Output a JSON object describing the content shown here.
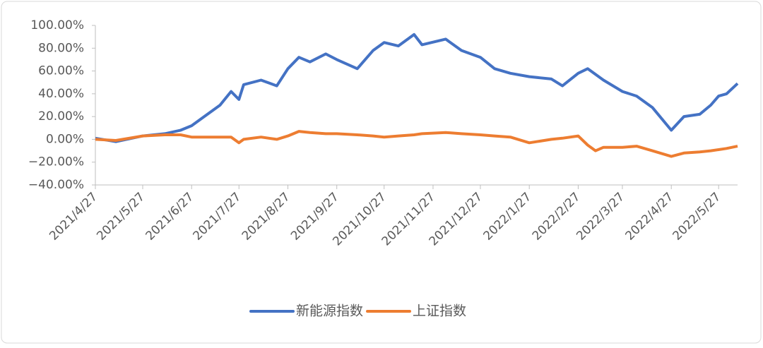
{
  "chart_data": {
    "type": "line",
    "x": [
      "2021/4/27",
      "2021/5/10",
      "2021/5/27",
      "2021/6/10",
      "2021/6/20",
      "2021/6/27",
      "2021/7/5",
      "2021/7/15",
      "2021/7/22",
      "2021/7/27",
      "2021/7/30",
      "2021/8/10",
      "2021/8/20",
      "2021/8/27",
      "2021/9/3",
      "2021/9/10",
      "2021/9/20",
      "2021/9/27",
      "2021/10/10",
      "2021/10/20",
      "2021/10/27",
      "2021/11/5",
      "2021/11/15",
      "2021/11/20",
      "2021/12/5",
      "2021/12/15",
      "2021/12/27",
      "2022/1/5",
      "2022/1/15",
      "2022/1/27",
      "2022/2/10",
      "2022/2/17",
      "2022/2/27",
      "2022/3/5",
      "2022/3/10",
      "2022/3/15",
      "2022/3/27",
      "2022/4/5",
      "2022/4/15",
      "2022/4/27",
      "2022/5/5",
      "2022/5/15",
      "2022/5/22",
      "2022/5/27",
      "2022/6/1",
      "2022/6/8"
    ],
    "series": [
      {
        "name": "新能源指数",
        "color": "#4472c4",
        "values": [
          1,
          -2,
          3,
          5,
          8,
          12,
          20,
          30,
          42,
          35,
          48,
          52,
          47,
          62,
          72,
          68,
          75,
          70,
          62,
          78,
          85,
          82,
          92,
          83,
          88,
          78,
          72,
          62,
          58,
          55,
          53,
          47,
          58,
          62,
          57,
          52,
          42,
          38,
          28,
          8,
          20,
          22,
          30,
          38,
          40,
          49
        ]
      },
      {
        "name": "上证指数",
        "color": "#ed7d31",
        "values": [
          0,
          -1,
          3,
          4,
          4,
          2,
          2,
          2,
          2,
          -3,
          0,
          2,
          0,
          3,
          7,
          6,
          5,
          5,
          4,
          3,
          2,
          3,
          4,
          5,
          6,
          5,
          4,
          3,
          2,
          -3,
          0,
          1,
          3,
          -5,
          -10,
          -7,
          -7,
          -6,
          -10,
          -15,
          -12,
          -11,
          -10,
          -9,
          -8,
          -6
        ]
      }
    ],
    "xlim": [
      "2021/4/27",
      "2022/6/8"
    ],
    "xticks": [
      "2021/4/27",
      "2021/5/27",
      "2021/6/27",
      "2021/7/27",
      "2021/8/27",
      "2021/9/27",
      "2021/10/27",
      "2021/11/27",
      "2021/12/27",
      "2022/1/27",
      "2022/2/27",
      "2022/3/27",
      "2022/4/27",
      "2022/5/27"
    ],
    "ylim": [
      -40,
      100
    ],
    "yticks": [
      {
        "value": -40,
        "label": "−40.00%"
      },
      {
        "value": -20,
        "label": "−20.00%"
      },
      {
        "value": 0,
        "label": "0.00%"
      },
      {
        "value": 20,
        "label": "20.00%"
      },
      {
        "value": 40,
        "label": "40.00%"
      },
      {
        "value": 60,
        "label": "60.00%"
      },
      {
        "value": 80,
        "label": "80.00%"
      },
      {
        "value": 100,
        "label": "100.00%"
      }
    ],
    "grid": false,
    "legend": "bottom"
  }
}
